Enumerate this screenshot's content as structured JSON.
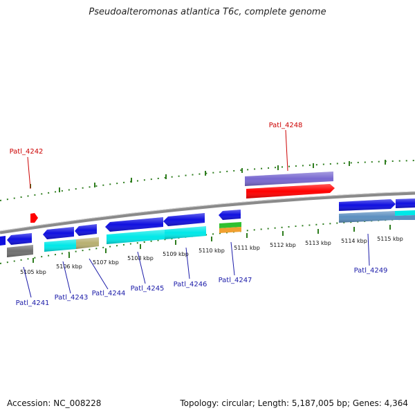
{
  "header": {
    "title": "Pseudoalteromonas atlantica T6c, complete genome"
  },
  "footer": {
    "accession": "Accession: NC_008228",
    "summary": "Topology: circular; Length: 5,187,005 bp; Genes: 4,364"
  },
  "colors": {
    "backbone": "#8a8a8a",
    "tick": "#2e7d1e",
    "forward_label": "#cc0000",
    "reverse_label": "#1a1aa8",
    "gene_blue": "#1010e0",
    "gene_cyan": "#00e8e8",
    "gene_red": "#ff0000",
    "gene_purple": "#7868d0",
    "gene_gray": "#707070",
    "gene_olive": "#b8b070",
    "gene_steel": "#5b8fc0",
    "gene_green": "#30c030",
    "gene_orange": "#f0a030"
  },
  "ruler": {
    "ticks": [
      {
        "label": "5105 kbp"
      },
      {
        "label": "5106 kbp"
      },
      {
        "label": "5107 kbp"
      },
      {
        "label": "5108 kbp"
      },
      {
        "label": "5109 kbp"
      },
      {
        "label": "5110 kbp"
      },
      {
        "label": "5111 kbp"
      },
      {
        "label": "5112 kbp"
      },
      {
        "label": "5113 kbp"
      },
      {
        "label": "5114 kbp"
      },
      {
        "label": "5115 kbp"
      }
    ]
  },
  "genes": {
    "forward": [
      {
        "label": "Patl_4242"
      },
      {
        "label": "Patl_4248"
      }
    ],
    "reverse": [
      {
        "label": "Patl_4241"
      },
      {
        "label": "Patl_4243"
      },
      {
        "label": "Patl_4244"
      },
      {
        "label": "Patl_4245"
      },
      {
        "label": "Patl_4246"
      },
      {
        "label": "Patl_4247"
      },
      {
        "label": "Patl_4249"
      }
    ]
  }
}
